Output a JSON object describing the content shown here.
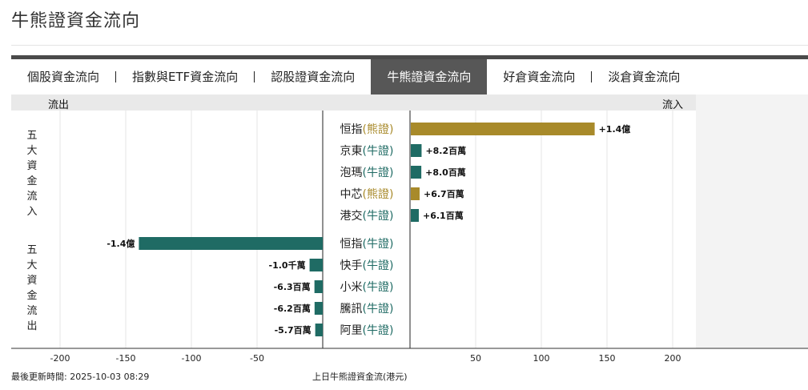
{
  "page": {
    "title": "牛熊證資金流向",
    "tabs": [
      {
        "label": "個股資金流向",
        "active": false
      },
      {
        "label": "指數與ETF資金流向",
        "active": false
      },
      {
        "label": "認股證資金流向",
        "active": false
      },
      {
        "label": "牛熊證資金流向",
        "active": true
      },
      {
        "label": "好倉資金流向",
        "active": false
      },
      {
        "label": "淡倉資金流向",
        "active": false
      }
    ],
    "outflow_header": "流出",
    "inflow_header": "流入",
    "group_inflow": "五大資金流入",
    "group_outflow": "五大資金流出",
    "footer_updated": "最後更新時間: 2025-10-03 08:29",
    "footer_caption": "上日牛熊證資金流(港元)"
  },
  "colors": {
    "bull": "#1f6b64",
    "bear": "#a88a2a",
    "bear_text": "#a88a2a",
    "bull_text": "#1f6b64"
  },
  "chart_data": {
    "type": "bar",
    "unit": "百萬港元",
    "xlim": [
      -200,
      200
    ],
    "x_ticks": [
      "-200",
      "-150",
      "-100",
      "-50",
      "50",
      "100",
      "150",
      "200"
    ],
    "inflow": [
      {
        "name": "恒指",
        "kind": "熊證",
        "value": 140,
        "label": "+1.4億"
      },
      {
        "name": "京東",
        "kind": "牛證",
        "value": 8.2,
        "label": "+8.2百萬"
      },
      {
        "name": "泡瑪",
        "kind": "牛證",
        "value": 8.0,
        "label": "+8.0百萬"
      },
      {
        "name": "中芯",
        "kind": "熊證",
        "value": 6.7,
        "label": "+6.7百萬"
      },
      {
        "name": "港交",
        "kind": "牛證",
        "value": 6.1,
        "label": "+6.1百萬"
      }
    ],
    "outflow": [
      {
        "name": "恒指",
        "kind": "牛證",
        "value": -140,
        "label": "-1.4億"
      },
      {
        "name": "快手",
        "kind": "牛證",
        "value": -10,
        "label": "-1.0千萬"
      },
      {
        "name": "小米",
        "kind": "牛證",
        "value": -6.3,
        "label": "-6.3百萬"
      },
      {
        "name": "騰訊",
        "kind": "牛證",
        "value": -6.2,
        "label": "-6.2百萬"
      },
      {
        "name": "阿里",
        "kind": "牛證",
        "value": -5.7,
        "label": "-5.7百萬"
      }
    ]
  }
}
